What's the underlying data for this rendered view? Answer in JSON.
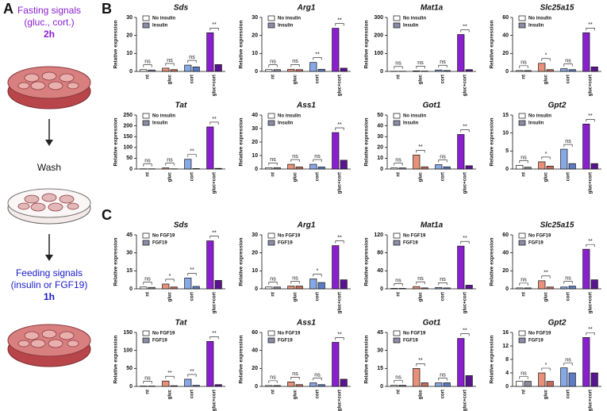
{
  "panel_a": {
    "label": "A",
    "fasting": [
      "Fasting signals",
      "(gluc., cort.)",
      "2h"
    ],
    "wash": "Wash",
    "feeding": [
      "Feeding signals",
      "(insulin or FGF19)",
      "1h"
    ]
  },
  "panel_labels": [
    "B",
    "C"
  ],
  "chart_data": [
    {
      "type": "bar",
      "title": "Sds",
      "y_label": "Relative expression",
      "categories": [
        "nt",
        "gluc",
        "cort",
        "gluc+cort"
      ],
      "series": [
        {
          "name": "No insulin",
          "color": "#ffffff",
          "colors": [
            "#ffffff",
            "#e8907a",
            "#86a8e6",
            "#8a1fd0"
          ],
          "values": [
            1,
            1.8,
            3.5,
            21.5
          ]
        },
        {
          "name": "Insulin",
          "color": "#8c8ca8",
          "colors": [
            "#8a8a9e",
            "#c56b58",
            "#5b7cc4",
            "#5a1490"
          ],
          "values": [
            0.8,
            1,
            2.5,
            3.8
          ]
        }
      ],
      "ylim": [
        0,
        30
      ],
      "yticks": [
        0,
        10,
        20,
        30
      ],
      "annotations": [
        "ns",
        "ns",
        "ns",
        "**"
      ]
    },
    {
      "type": "bar",
      "title": "Arg1",
      "y_label": "Relative expression",
      "categories": [
        "nt",
        "gluc",
        "cort",
        "gluc+cort"
      ],
      "series": [
        {
          "name": "No insulin",
          "color": "#ffffff",
          "colors": [
            "#ffffff",
            "#e8907a",
            "#86a8e6",
            "#8a1fd0"
          ],
          "values": [
            1,
            1.2,
            5,
            24
          ]
        },
        {
          "name": "Insulin",
          "color": "#8c8ca8",
          "colors": [
            "#8a8a9e",
            "#c56b58",
            "#5b7cc4",
            "#5a1490"
          ],
          "values": [
            1,
            1,
            1.2,
            1.8
          ]
        }
      ],
      "ylim": [
        0,
        30
      ],
      "yticks": [
        0,
        10,
        20,
        30
      ],
      "annotations": [
        "ns",
        "ns",
        "**",
        "**"
      ]
    },
    {
      "type": "bar",
      "title": "Mat1a",
      "y_label": "Relative expression",
      "categories": [
        "nt",
        "gluc",
        "cort",
        "gluc+cort"
      ],
      "series": [
        {
          "name": "No insulin",
          "color": "#ffffff",
          "colors": [
            "#ffffff",
            "#e8907a",
            "#86a8e6",
            "#8a1fd0"
          ],
          "values": [
            1,
            3,
            8,
            205
          ]
        },
        {
          "name": "Insulin",
          "color": "#8c8ca8",
          "colors": [
            "#8a8a9e",
            "#c56b58",
            "#5b7cc4",
            "#5a1490"
          ],
          "values": [
            1,
            2,
            5,
            10
          ]
        }
      ],
      "ylim": [
        0,
        300
      ],
      "yticks": [
        0,
        100,
        200,
        300
      ],
      "annotations": [
        "ns",
        "ns",
        "ns",
        "**"
      ]
    },
    {
      "type": "bar",
      "title": "Slc25a15",
      "y_label": "Relative expression",
      "categories": [
        "nt",
        "gluc",
        "cort",
        "gluc+cort"
      ],
      "series": [
        {
          "name": "No insulin",
          "color": "#ffffff",
          "colors": [
            "#ffffff",
            "#e8907a",
            "#86a8e6",
            "#8a1fd0"
          ],
          "values": [
            1,
            9,
            3,
            43
          ]
        },
        {
          "name": "Insulin",
          "color": "#8c8ca8",
          "colors": [
            "#8a8a9e",
            "#c56b58",
            "#5b7cc4",
            "#5a1490"
          ],
          "values": [
            1,
            2,
            2,
            5
          ]
        }
      ],
      "ylim": [
        0,
        60
      ],
      "yticks": [
        0,
        20,
        40,
        60
      ],
      "annotations": [
        "ns",
        "*",
        "ns",
        "**"
      ]
    },
    {
      "type": "bar",
      "title": "Tat",
      "y_label": "Relative expression",
      "categories": [
        "nt",
        "gluc",
        "cort",
        "gluc+cort"
      ],
      "series": [
        {
          "name": "No insulin",
          "color": "#ffffff",
          "colors": [
            "#ffffff",
            "#e8907a",
            "#86a8e6",
            "#8a1fd0"
          ],
          "values": [
            1,
            5,
            45,
            195
          ]
        },
        {
          "name": "Insulin",
          "color": "#8c8ca8",
          "colors": [
            "#8a8a9e",
            "#c56b58",
            "#5b7cc4",
            "#5a1490"
          ],
          "values": [
            1,
            1,
            2,
            3
          ]
        }
      ],
      "ylim": [
        0,
        250
      ],
      "yticks": [
        0,
        50,
        100,
        150,
        200,
        250
      ],
      "annotations": [
        "ns",
        "ns",
        "**",
        "**"
      ]
    },
    {
      "type": "bar",
      "title": "Ass1",
      "y_label": "Relative expression",
      "categories": [
        "nt",
        "gluc",
        "cort",
        "gluc+cort"
      ],
      "series": [
        {
          "name": "No insulin",
          "color": "#ffffff",
          "colors": [
            "#ffffff",
            "#e8907a",
            "#86a8e6",
            "#8a1fd0"
          ],
          "values": [
            1,
            3.5,
            3.5,
            27
          ]
        },
        {
          "name": "Insulin",
          "color": "#8c8ca8",
          "colors": [
            "#8a8a9e",
            "#c56b58",
            "#5b7cc4",
            "#5a1490"
          ],
          "values": [
            1,
            1.5,
            1.5,
            6.5
          ]
        }
      ],
      "ylim": [
        0,
        40
      ],
      "yticks": [
        0,
        10,
        20,
        30,
        40
      ],
      "annotations": [
        "ns",
        "ns",
        "ns",
        "**"
      ]
    },
    {
      "type": "bar",
      "title": "Got1",
      "y_label": "Relative expression",
      "categories": [
        "nt",
        "gluc",
        "cort",
        "gluc+cort"
      ],
      "series": [
        {
          "name": "No insulin",
          "color": "#ffffff",
          "colors": [
            "#ffffff",
            "#e8907a",
            "#86a8e6",
            "#8a1fd0"
          ],
          "values": [
            1,
            13,
            4,
            32
          ]
        },
        {
          "name": "Insulin",
          "color": "#8c8ca8",
          "colors": [
            "#8a8a9e",
            "#c56b58",
            "#5b7cc4",
            "#5a1490"
          ],
          "values": [
            1,
            2,
            2,
            3
          ]
        }
      ],
      "ylim": [
        0,
        50
      ],
      "yticks": [
        0,
        10,
        20,
        30,
        40,
        50
      ],
      "annotations": [
        "ns",
        "**",
        "ns",
        "**"
      ]
    },
    {
      "type": "bar",
      "title": "Gpt2",
      "y_label": "Relative expression",
      "categories": [
        "nt",
        "gluc",
        "cort",
        "gluc+cort"
      ],
      "series": [
        {
          "name": "No insulin",
          "color": "#ffffff",
          "colors": [
            "#ffffff",
            "#e8907a",
            "#86a8e6",
            "#8a1fd0"
          ],
          "values": [
            1,
            2,
            5.5,
            12.5
          ]
        },
        {
          "name": "Insulin",
          "color": "#8c8ca8",
          "colors": [
            "#8a8a9e",
            "#c56b58",
            "#5b7cc4",
            "#5a1490"
          ],
          "values": [
            0.5,
            0.8,
            1.5,
            1.5
          ]
        }
      ],
      "ylim": [
        0,
        15
      ],
      "yticks": [
        0,
        5,
        10,
        15
      ],
      "annotations": [
        "ns",
        "*",
        "ns",
        "**"
      ]
    },
    {
      "type": "bar",
      "title": "Sds",
      "y_label": "Relative expression",
      "categories": [
        "nt",
        "gluc",
        "cort",
        "gluc+cort"
      ],
      "series": [
        {
          "name": "No FGF19",
          "color": "#ffffff",
          "colors": [
            "#ffffff",
            "#e8907a",
            "#86a8e6",
            "#8a1fd0"
          ],
          "values": [
            1.5,
            4,
            9,
            40
          ]
        },
        {
          "name": "FGF19",
          "color": "#8c8ca8",
          "colors": [
            "#8a8a9e",
            "#c56b58",
            "#5b7cc4",
            "#5a1490"
          ],
          "values": [
            1.2,
            1.5,
            2,
            7
          ]
        }
      ],
      "ylim": [
        0,
        45
      ],
      "yticks": [
        0,
        15,
        30,
        45
      ],
      "annotations": [
        "ns",
        "*",
        "**",
        "**"
      ]
    },
    {
      "type": "bar",
      "title": "Arg1",
      "y_label": "Relative expression",
      "categories": [
        "nt",
        "gluc",
        "cort",
        "gluc+cort"
      ],
      "series": [
        {
          "name": "No FGF19",
          "color": "#ffffff",
          "colors": [
            "#ffffff",
            "#e8907a",
            "#86a8e6",
            "#8a1fd0"
          ],
          "values": [
            1,
            1.5,
            5.5,
            24
          ]
        },
        {
          "name": "FGF19",
          "color": "#8c8ca8",
          "colors": [
            "#8a8a9e",
            "#c56b58",
            "#5b7cc4",
            "#5a1490"
          ],
          "values": [
            1,
            1.5,
            3.5,
            5
          ]
        }
      ],
      "ylim": [
        0,
        30
      ],
      "yticks": [
        0,
        10,
        20,
        30
      ],
      "annotations": [
        "ns",
        "ns",
        "*",
        "**"
      ]
    },
    {
      "type": "bar",
      "title": "Mat1a",
      "y_label": "Relative expression",
      "categories": [
        "nt",
        "gluc",
        "cort",
        "gluc+cort"
      ],
      "series": [
        {
          "name": "No FGF19",
          "color": "#ffffff",
          "colors": [
            "#ffffff",
            "#e8907a",
            "#86a8e6",
            "#8a1fd0"
          ],
          "values": [
            1,
            5,
            3,
            95
          ]
        },
        {
          "name": "FGF19",
          "color": "#8c8ca8",
          "colors": [
            "#8a8a9e",
            "#c56b58",
            "#5b7cc4",
            "#5a1490"
          ],
          "values": [
            1,
            2,
            2,
            8
          ]
        }
      ],
      "ylim": [
        0,
        120
      ],
      "yticks": [
        0,
        40,
        80,
        120
      ],
      "annotations": [
        "ns",
        "ns",
        "ns",
        "**"
      ]
    },
    {
      "type": "bar",
      "title": "Slc25a15",
      "y_label": "Relative expression",
      "categories": [
        "nt",
        "gluc",
        "cort",
        "gluc+cort"
      ],
      "series": [
        {
          "name": "No FGF19",
          "color": "#ffffff",
          "colors": [
            "#ffffff",
            "#e8907a",
            "#86a8e6",
            "#8a1fd0"
          ],
          "values": [
            1,
            9,
            2,
            44
          ]
        },
        {
          "name": "FGF19",
          "color": "#8c8ca8",
          "colors": [
            "#8a8a9e",
            "#c56b58",
            "#5b7cc4",
            "#5a1490"
          ],
          "values": [
            1,
            2,
            3,
            10
          ]
        }
      ],
      "ylim": [
        0,
        60
      ],
      "yticks": [
        0,
        20,
        40,
        60
      ],
      "annotations": [
        "ns",
        "**",
        "ns",
        "**"
      ]
    },
    {
      "type": "bar",
      "title": "Tat",
      "y_label": "Relative expression",
      "categories": [
        "nt",
        "gluc",
        "cort",
        "gluc+cort"
      ],
      "series": [
        {
          "name": "No FGF19",
          "color": "#ffffff",
          "colors": [
            "#ffffff",
            "#e8907a",
            "#86a8e6",
            "#8a1fd0"
          ],
          "values": [
            1,
            15,
            20,
            125
          ]
        },
        {
          "name": "FGF19",
          "color": "#8c8ca8",
          "colors": [
            "#8a8a9e",
            "#c56b58",
            "#5b7cc4",
            "#5a1490"
          ],
          "values": [
            1,
            2,
            3,
            5
          ]
        }
      ],
      "ylim": [
        0,
        150
      ],
      "yticks": [
        0,
        50,
        100,
        150
      ],
      "annotations": [
        "ns",
        "**",
        "**",
        "**"
      ]
    },
    {
      "type": "bar",
      "title": "Ass1",
      "y_label": "Relative expression",
      "categories": [
        "nt",
        "gluc",
        "cort",
        "gluc+cort"
      ],
      "series": [
        {
          "name": "No FGF19",
          "color": "#ffffff",
          "colors": [
            "#ffffff",
            "#e8907a",
            "#86a8e6",
            "#8a1fd0"
          ],
          "values": [
            1,
            5,
            4,
            49
          ]
        },
        {
          "name": "FGF19",
          "color": "#8c8ca8",
          "colors": [
            "#8a8a9e",
            "#c56b58",
            "#5b7cc4",
            "#5a1490"
          ],
          "values": [
            1,
            2,
            2,
            8
          ]
        }
      ],
      "ylim": [
        0,
        60
      ],
      "yticks": [
        0,
        20,
        40,
        60
      ],
      "annotations": [
        "ns",
        "ns",
        "ns",
        "**"
      ]
    },
    {
      "type": "bar",
      "title": "Got1",
      "y_label": "Relative expression",
      "categories": [
        "nt",
        "gluc",
        "cort",
        "gluc+cort"
      ],
      "series": [
        {
          "name": "No FGF19",
          "color": "#ffffff",
          "colors": [
            "#ffffff",
            "#e8907a",
            "#86a8e6",
            "#8a1fd0"
          ],
          "values": [
            1,
            15,
            3,
            40
          ]
        },
        {
          "name": "FGF19",
          "color": "#8c8ca8",
          "colors": [
            "#8a8a9e",
            "#c56b58",
            "#5b7cc4",
            "#5a1490"
          ],
          "values": [
            1,
            3,
            3,
            9
          ]
        }
      ],
      "ylim": [
        0,
        45
      ],
      "yticks": [
        0,
        15,
        30,
        45
      ],
      "annotations": [
        "ns",
        "**",
        "ns",
        "**"
      ]
    },
    {
      "type": "bar",
      "title": "Gpt2",
      "y_label": "Relative expression",
      "categories": [
        "nt",
        "gluc",
        "cort",
        "gluc+cort"
      ],
      "series": [
        {
          "name": "No FGF19",
          "color": "#ffffff",
          "colors": [
            "#ffffff",
            "#e8907a",
            "#86a8e6",
            "#8a1fd0"
          ],
          "values": [
            1.5,
            4,
            5.5,
            14.5
          ]
        },
        {
          "name": "FGF19",
          "color": "#8c8ca8",
          "colors": [
            "#8a8a9e",
            "#c56b58",
            "#5b7cc4",
            "#5a1490"
          ],
          "values": [
            1.5,
            1.5,
            4,
            4
          ]
        }
      ],
      "ylim": [
        0,
        16
      ],
      "yticks": [
        0,
        4,
        8,
        12,
        16
      ],
      "annotations": [
        "ns",
        "*",
        "ns",
        "**"
      ]
    }
  ]
}
